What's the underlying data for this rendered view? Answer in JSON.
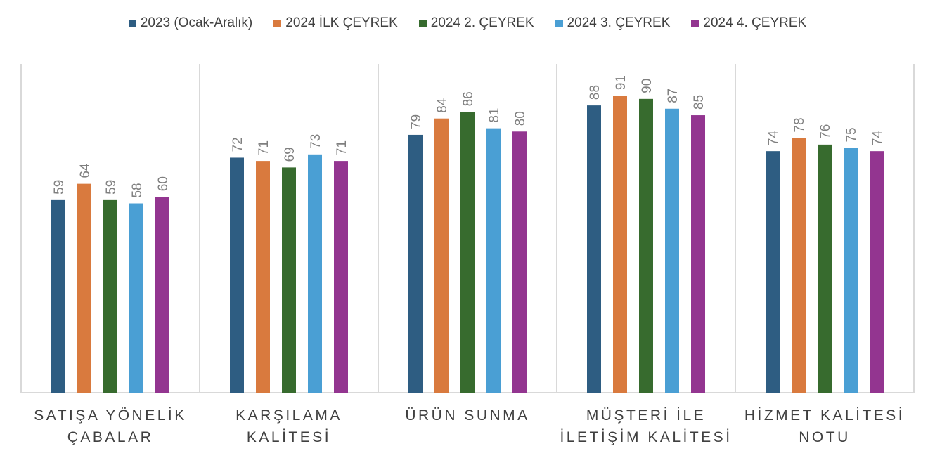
{
  "colors": {
    "series": [
      "#2e5d82",
      "#d97a3e",
      "#376b2e",
      "#4a9fd4",
      "#933590"
    ],
    "grid": "#d9d9d9",
    "label": "#7f7f7f",
    "category": "#404040"
  },
  "chart_data": {
    "type": "bar",
    "title": "",
    "xlabel": "",
    "ylabel": "",
    "ylim": [
      0,
      100
    ],
    "legend": "top-center",
    "grid": true,
    "categories": [
      [
        "SATIŞA YÖNELİK",
        "ÇABALAR"
      ],
      [
        "KARŞILAMA",
        "KALİTESİ"
      ],
      [
        "ÜRÜN SUNMA"
      ],
      [
        "MÜŞTERİ İLE",
        "İLETİŞİM KALİTESİ"
      ],
      [
        "HİZMET KALİTESİ",
        "NOTU"
      ]
    ],
    "series": [
      {
        "name": "2023 (Ocak-Aralık)",
        "values": [
          59,
          72,
          79,
          88,
          74
        ]
      },
      {
        "name": "2024 İLK ÇEYREK",
        "values": [
          64,
          71,
          84,
          91,
          78
        ]
      },
      {
        "name": "2024 2. ÇEYREK",
        "values": [
          59,
          69,
          86,
          90,
          76
        ]
      },
      {
        "name": "2024 3. ÇEYREK",
        "values": [
          58,
          73,
          81,
          87,
          75
        ]
      },
      {
        "name": "2024 4. ÇEYREK",
        "values": [
          60,
          71,
          80,
          85,
          74
        ]
      }
    ]
  }
}
